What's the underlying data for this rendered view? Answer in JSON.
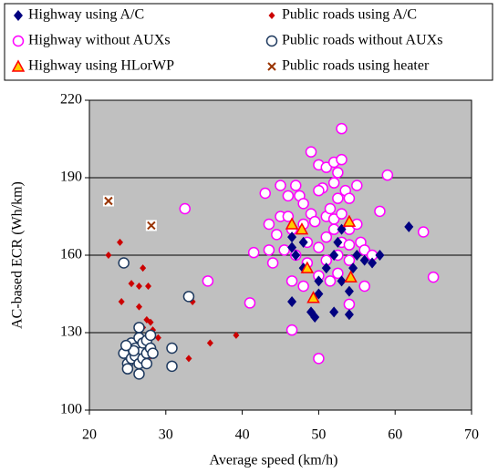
{
  "chart_data": {
    "type": "scatter",
    "xlabel": "Average speed (km/h)",
    "ylabel": "AC-based ECR (Wh/km)",
    "xlim": [
      20,
      70
    ],
    "xticks": [
      20,
      30,
      40,
      50,
      60,
      70
    ],
    "ylim": [
      100,
      220
    ],
    "yticks": [
      100,
      130,
      160,
      190,
      220
    ],
    "grid": true,
    "series": [
      {
        "name": "Highway using A/C",
        "color": "#000080",
        "marker": "diamond",
        "x": [
          46.5,
          46.5,
          47,
          46.5,
          48,
          49,
          49.5,
          50,
          51,
          52,
          52.5,
          53,
          54,
          54,
          55,
          56,
          57,
          58,
          61.8,
          53,
          50,
          52,
          54.5,
          48
        ],
        "y": [
          167,
          163,
          160,
          142,
          155,
          138,
          136,
          150,
          155,
          138,
          165,
          170,
          146,
          137,
          160,
          158,
          157,
          160,
          171,
          150,
          145,
          160,
          155,
          165
        ]
      },
      {
        "name": "Public roads using A/C",
        "color": "#cc0000",
        "marker": "small-diamond",
        "x": [
          22.5,
          24,
          24.2,
          25.5,
          26.5,
          26.5,
          27,
          27.5,
          28,
          27.7,
          28.3,
          29,
          33.5,
          35.8,
          39.2,
          33,
          26,
          27,
          28
        ],
        "y": [
          160,
          165,
          142,
          149,
          140,
          148,
          155,
          135,
          134,
          148,
          131,
          128,
          142,
          126,
          129,
          120,
          125,
          132,
          121
        ]
      },
      {
        "name": "Highway without AUXs",
        "color": "#ff00ff",
        "marker": "circle",
        "x": [
          32.5,
          35.5,
          41,
          41.5,
          43,
          43.5,
          43.5,
          44,
          44.5,
          45,
          45,
          45.5,
          46,
          46,
          46.5,
          46.5,
          46.5,
          47,
          47,
          47.5,
          48,
          48,
          48.5,
          48.5,
          49,
          49,
          49.5,
          50,
          50,
          50,
          50,
          50.5,
          51,
          51,
          51,
          51,
          51.5,
          52,
          52,
          52,
          52.5,
          52.5,
          52.5,
          52.5,
          53,
          53,
          53,
          53,
          53.5,
          54,
          54,
          54,
          54,
          54,
          55,
          55,
          55.5,
          56,
          56,
          57,
          58,
          59,
          63.7,
          65,
          48,
          51.5,
          50,
          52
        ],
        "y": [
          178,
          150,
          141.5,
          161,
          184,
          172,
          162,
          157,
          168,
          187,
          175,
          162,
          183,
          175,
          170,
          150,
          131,
          160,
          187,
          183,
          180,
          172,
          165,
          157,
          200,
          176,
          173,
          195,
          163,
          152,
          120,
          186,
          194,
          175,
          167,
          158,
          178,
          196,
          188,
          174,
          192,
          182,
          160,
          153,
          209,
          197,
          176,
          165,
          185,
          182,
          170,
          164,
          158,
          141,
          187,
          172,
          165,
          162,
          148,
          160,
          177,
          191,
          169,
          151.5,
          148,
          150,
          185,
          170
        ]
      },
      {
        "name": "Public roads without AUXs",
        "color": "#1f3a5f",
        "marker": "open-circle",
        "x": [
          24.5,
          33,
          30.8,
          30.8,
          24.5,
          25,
          25,
          25.5,
          25.5,
          26,
          26,
          26.5,
          26.5,
          26.5,
          27,
          27,
          27,
          27.5,
          27.5,
          27.5,
          28,
          28,
          26.5,
          25.8,
          24.8,
          28.3
        ],
        "y": [
          157,
          144,
          124,
          117,
          122,
          118,
          116,
          120,
          126,
          124,
          121,
          118,
          114,
          128,
          123,
          120,
          126,
          127,
          122,
          118,
          124,
          129,
          132,
          123,
          125,
          122
        ]
      },
      {
        "name": "Highway using HLorWP",
        "color": "#ffcc00",
        "marker": "triangle",
        "x": [
          46.5,
          47.8,
          48.5,
          49.3,
          54,
          54.2
        ],
        "y": [
          172,
          170,
          155,
          143.5,
          173,
          151.5
        ]
      },
      {
        "name": "Public roads using heater",
        "color": "#993300",
        "marker": "cross",
        "x": [
          22.5,
          28.1
        ],
        "y": [
          181,
          171.5
        ]
      }
    ]
  }
}
